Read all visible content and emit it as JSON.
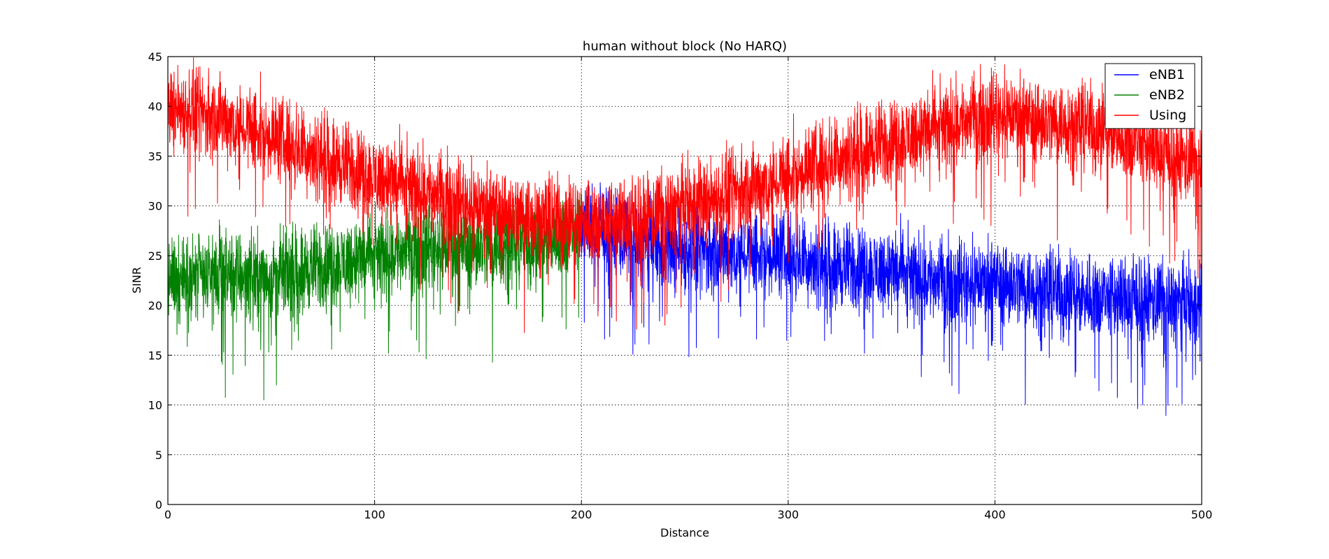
{
  "chart_data": {
    "type": "line",
    "title": "human without block (No HARQ)",
    "xlabel": "Distance",
    "ylabel": "SINR",
    "xlim": [
      0,
      500
    ],
    "ylim": [
      0,
      45
    ],
    "xticks": [
      0,
      100,
      200,
      300,
      400,
      500
    ],
    "yticks": [
      0,
      5,
      10,
      15,
      20,
      25,
      30,
      35,
      40,
      45
    ],
    "grid": true,
    "legend_position": "top-right",
    "series": [
      {
        "name": "eNB1",
        "color": "#0000ff",
        "x_start": 200,
        "x_end": 500,
        "x": [
          200,
          225,
          250,
          275,
          300,
          325,
          350,
          375,
          400,
          425,
          450,
          475,
          500
        ],
        "values": [
          28.5,
          26.5,
          25.5,
          25.5,
          25,
          24,
          23.5,
          22.5,
          22.5,
          21.5,
          21,
          20.5,
          20
        ]
      },
      {
        "name": "eNB2",
        "color": "#008000",
        "x_start": 0,
        "x_end": 200,
        "x": [
          0,
          25,
          50,
          75,
          100,
          125,
          150,
          175,
          200
        ],
        "values": [
          22.5,
          23,
          23,
          24,
          25,
          26,
          26,
          26.5,
          27.5
        ]
      },
      {
        "name": "Using",
        "color": "#ff0000",
        "x_start": 0,
        "x_end": 500,
        "x": [
          0,
          25,
          50,
          75,
          100,
          125,
          150,
          175,
          200,
          225,
          250,
          275,
          300,
          325,
          350,
          375,
          400,
          425,
          450,
          475,
          500
        ],
        "values": [
          40,
          39,
          37,
          35,
          33,
          31.5,
          30,
          29,
          28.5,
          28.5,
          30,
          31.5,
          33,
          35,
          36.5,
          38,
          39.5,
          38.5,
          38,
          36,
          34
        ]
      }
    ]
  }
}
